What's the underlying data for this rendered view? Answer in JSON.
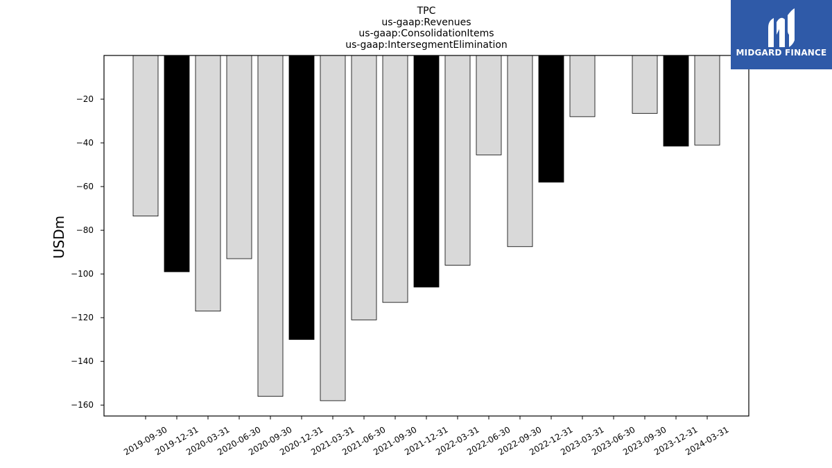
{
  "chart_data": {
    "type": "bar",
    "title_lines": [
      "TPC",
      "us-gaap:Revenues",
      "us-gaap:ConsolidationItems",
      "us-gaap:IntersegmentElimination"
    ],
    "ylabel": "USDm",
    "xlabel": "",
    "categories": [
      "2019-09-30",
      "2019-12-31",
      "2020-03-31",
      "2020-06-30",
      "2020-09-30",
      "2020-12-31",
      "2021-03-31",
      "2021-06-30",
      "2021-09-30",
      "2021-12-31",
      "2022-03-31",
      "2022-06-30",
      "2022-09-30",
      "2022-12-31",
      "2023-03-31",
      "2023-06-30",
      "2023-09-30",
      "2023-12-31",
      "2024-03-31"
    ],
    "values": [
      -73.5,
      -99,
      -117,
      -93,
      -156,
      -130,
      -158,
      -121,
      -113,
      -106,
      -96,
      -45.5,
      -87.5,
      -58,
      -28,
      null,
      -26.5,
      -41.5,
      -41
    ],
    "highlight": [
      false,
      true,
      false,
      false,
      false,
      true,
      false,
      false,
      false,
      true,
      false,
      false,
      false,
      true,
      false,
      false,
      false,
      true,
      false
    ],
    "colors": {
      "normal": "#d9d9d9",
      "highlight": "#000000",
      "edge": "#000000"
    },
    "ylim": [
      -165,
      0
    ],
    "yticks": [
      -20,
      -40,
      -60,
      -80,
      -100,
      -120,
      -140,
      -160
    ],
    "grid": false
  },
  "logo": {
    "text": "MIDGARD FINANCE"
  }
}
